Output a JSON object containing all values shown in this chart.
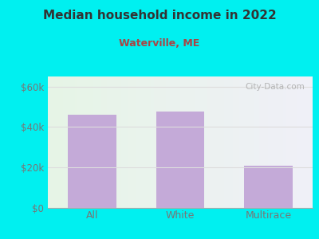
{
  "title": "Median household income in 2022",
  "subtitle": "Waterville, ME",
  "categories": [
    "All",
    "White",
    "Multirace"
  ],
  "values": [
    46000,
    47500,
    21000
  ],
  "bar_color": "#c4aad8",
  "title_color": "#333333",
  "subtitle_color": "#aa4444",
  "tick_label_color": "#777777",
  "background_outer": "#00f0f0",
  "yticks": [
    0,
    20000,
    40000,
    60000
  ],
  "ytick_labels": [
    "$0",
    "$20k",
    "$40k",
    "$60k"
  ],
  "ylim": [
    0,
    65000
  ],
  "watermark": "City-Data.com",
  "grid_color": "#dddddd",
  "plot_bg_left": "#e6f5e6",
  "plot_bg_right": "#f0f0f8"
}
